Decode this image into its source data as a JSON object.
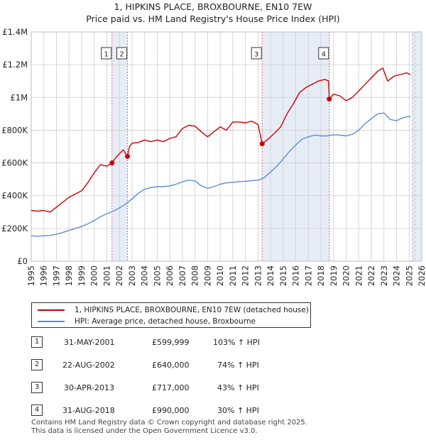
{
  "colors": {
    "property": "#cc0000",
    "hpi": "#5b8fd0",
    "band": "#dde6f4",
    "vline": "#e06a6a",
    "grid": "#cccccc"
  },
  "chart_data": {
    "type": "line",
    "title": "1, HIPKINS PLACE, BROXBOURNE, EN10 7EW",
    "subtitle": "Price paid vs. HM Land Registry's House Price Index (HPI)",
    "xlabel": "",
    "ylabel": "",
    "xlim": [
      1995,
      2026
    ],
    "ylim": [
      0,
      1400000
    ],
    "x_ticks": [
      "1995",
      "1996",
      "1997",
      "1998",
      "1999",
      "2000",
      "2001",
      "2002",
      "2003",
      "2004",
      "2005",
      "2006",
      "2007",
      "2008",
      "2009",
      "2010",
      "2011",
      "2012",
      "2013",
      "2014",
      "2015",
      "2016",
      "2017",
      "2018",
      "2019",
      "2020",
      "2021",
      "2022",
      "2023",
      "2024",
      "2025",
      "2026"
    ],
    "y_ticks": [
      {
        "value": 0,
        "label": "£0"
      },
      {
        "value": 200000,
        "label": "£200K"
      },
      {
        "value": 400000,
        "label": "£400K"
      },
      {
        "value": 600000,
        "label": "£600K"
      },
      {
        "value": 800000,
        "label": "£800K"
      },
      {
        "value": 1000000,
        "label": "£1M"
      },
      {
        "value": 1200000,
        "label": "£1.2M"
      },
      {
        "value": 1400000,
        "label": "£1.4M"
      }
    ],
    "grid": true,
    "shaded_ranges": [
      [
        2001.41,
        2002.64
      ],
      [
        2013.33,
        2018.66
      ],
      [
        2025.2,
        2026
      ]
    ],
    "events": [
      {
        "label": "1",
        "x": 2001.41,
        "y": 599999
      },
      {
        "label": "2",
        "x": 2002.64,
        "y": 640000
      },
      {
        "label": "3",
        "x": 2013.33,
        "y": 717000
      },
      {
        "label": "4",
        "x": 2018.66,
        "y": 990000
      }
    ],
    "series": [
      {
        "name": "1, HIPKINS PLACE, BROXBOURNE, EN10 7EW (detached house)",
        "x": [
          1995,
          1995.5,
          1996,
          1996.5,
          1997,
          1997.5,
          1998,
          1998.5,
          1999,
          1999.5,
          2000,
          2000.5,
          2001,
          2001.41,
          2001.8,
          2002.3,
          2002.64,
          2002.8,
          2003,
          2003.5,
          2004,
          2004.5,
          2005,
          2005.5,
          2006,
          2006.5,
          2007,
          2007.5,
          2008,
          2008.5,
          2009,
          2009.5,
          2010,
          2010.5,
          2011,
          2011.5,
          2012,
          2012.5,
          2013,
          2013.33,
          2013.8,
          2014.3,
          2014.8,
          2015.3,
          2015.8,
          2016.3,
          2016.8,
          2017.3,
          2017.8,
          2018.3,
          2018.6,
          2018.66,
          2019,
          2019.5,
          2020,
          2020.5,
          2021,
          2021.5,
          2022,
          2022.5,
          2022.9,
          2023.3,
          2023.8,
          2024.3,
          2024.8,
          2025.1
        ],
        "values": [
          310000,
          305000,
          310000,
          300000,
          330000,
          360000,
          390000,
          410000,
          430000,
          480000,
          540000,
          590000,
          580000,
          599999,
          640000,
          680000,
          640000,
          700000,
          720000,
          725000,
          740000,
          730000,
          740000,
          730000,
          750000,
          760000,
          810000,
          830000,
          825000,
          790000,
          760000,
          790000,
          820000,
          800000,
          850000,
          850000,
          845000,
          855000,
          835000,
          717000,
          745000,
          780000,
          820000,
          900000,
          960000,
          1030000,
          1060000,
          1080000,
          1100000,
          1110000,
          1100000,
          990000,
          1020000,
          1010000,
          980000,
          1000000,
          1040000,
          1080000,
          1120000,
          1160000,
          1180000,
          1100000,
          1130000,
          1140000,
          1150000,
          1140000
        ]
      },
      {
        "name": "HPI: Average price, detached house, Broxbourne",
        "x": [
          1995,
          1995.5,
          1996,
          1996.5,
          1997,
          1997.5,
          1998,
          1998.5,
          1999,
          1999.5,
          2000,
          2000.5,
          2001,
          2001.5,
          2002,
          2002.5,
          2003,
          2003.5,
          2004,
          2004.5,
          2005,
          2005.5,
          2006,
          2006.5,
          2007,
          2007.5,
          2008,
          2008.5,
          2009,
          2009.5,
          2010,
          2010.5,
          2011,
          2011.5,
          2012,
          2012.5,
          2013,
          2013.5,
          2014,
          2014.5,
          2015,
          2015.5,
          2016,
          2016.5,
          2017,
          2017.5,
          2018,
          2018.5,
          2019,
          2019.5,
          2020,
          2020.5,
          2021,
          2021.5,
          2022,
          2022.5,
          2023,
          2023.5,
          2024,
          2024.5,
          2025,
          2025.1
        ],
        "values": [
          155000,
          152000,
          155000,
          157000,
          165000,
          175000,
          188000,
          200000,
          212000,
          228000,
          248000,
          272000,
          290000,
          305000,
          325000,
          350000,
          380000,
          415000,
          440000,
          450000,
          455000,
          455000,
          460000,
          470000,
          485000,
          495000,
          490000,
          460000,
          445000,
          455000,
          470000,
          478000,
          482000,
          486000,
          488000,
          492000,
          495000,
          510000,
          545000,
          580000,
          625000,
          670000,
          710000,
          745000,
          760000,
          770000,
          765000,
          765000,
          772000,
          770000,
          765000,
          775000,
          800000,
          840000,
          870000,
          900000,
          905000,
          865000,
          858000,
          875000,
          885000,
          880000
        ]
      }
    ]
  },
  "legend": {
    "property_label": "1, HIPKINS PLACE, BROXBOURNE, EN10 7EW (detached house)",
    "hpi_label": "HPI: Average price, detached house, Broxbourne"
  },
  "events_table": [
    {
      "num": "1",
      "date": "31-MAY-2001",
      "price": "£599,999",
      "hpi": "103% ↑ HPI"
    },
    {
      "num": "2",
      "date": "22-AUG-2002",
      "price": "£640,000",
      "hpi": "74% ↑ HPI"
    },
    {
      "num": "3",
      "date": "30-APR-2013",
      "price": "£717,000",
      "hpi": "43% ↑ HPI"
    },
    {
      "num": "4",
      "date": "31-AUG-2018",
      "price": "£990,000",
      "hpi": "30% ↑ HPI"
    }
  ],
  "footer": {
    "line1": "Contains HM Land Registry data © Crown copyright and database right 2025.",
    "line2": "This data is licensed under the Open Government Licence v3.0."
  }
}
